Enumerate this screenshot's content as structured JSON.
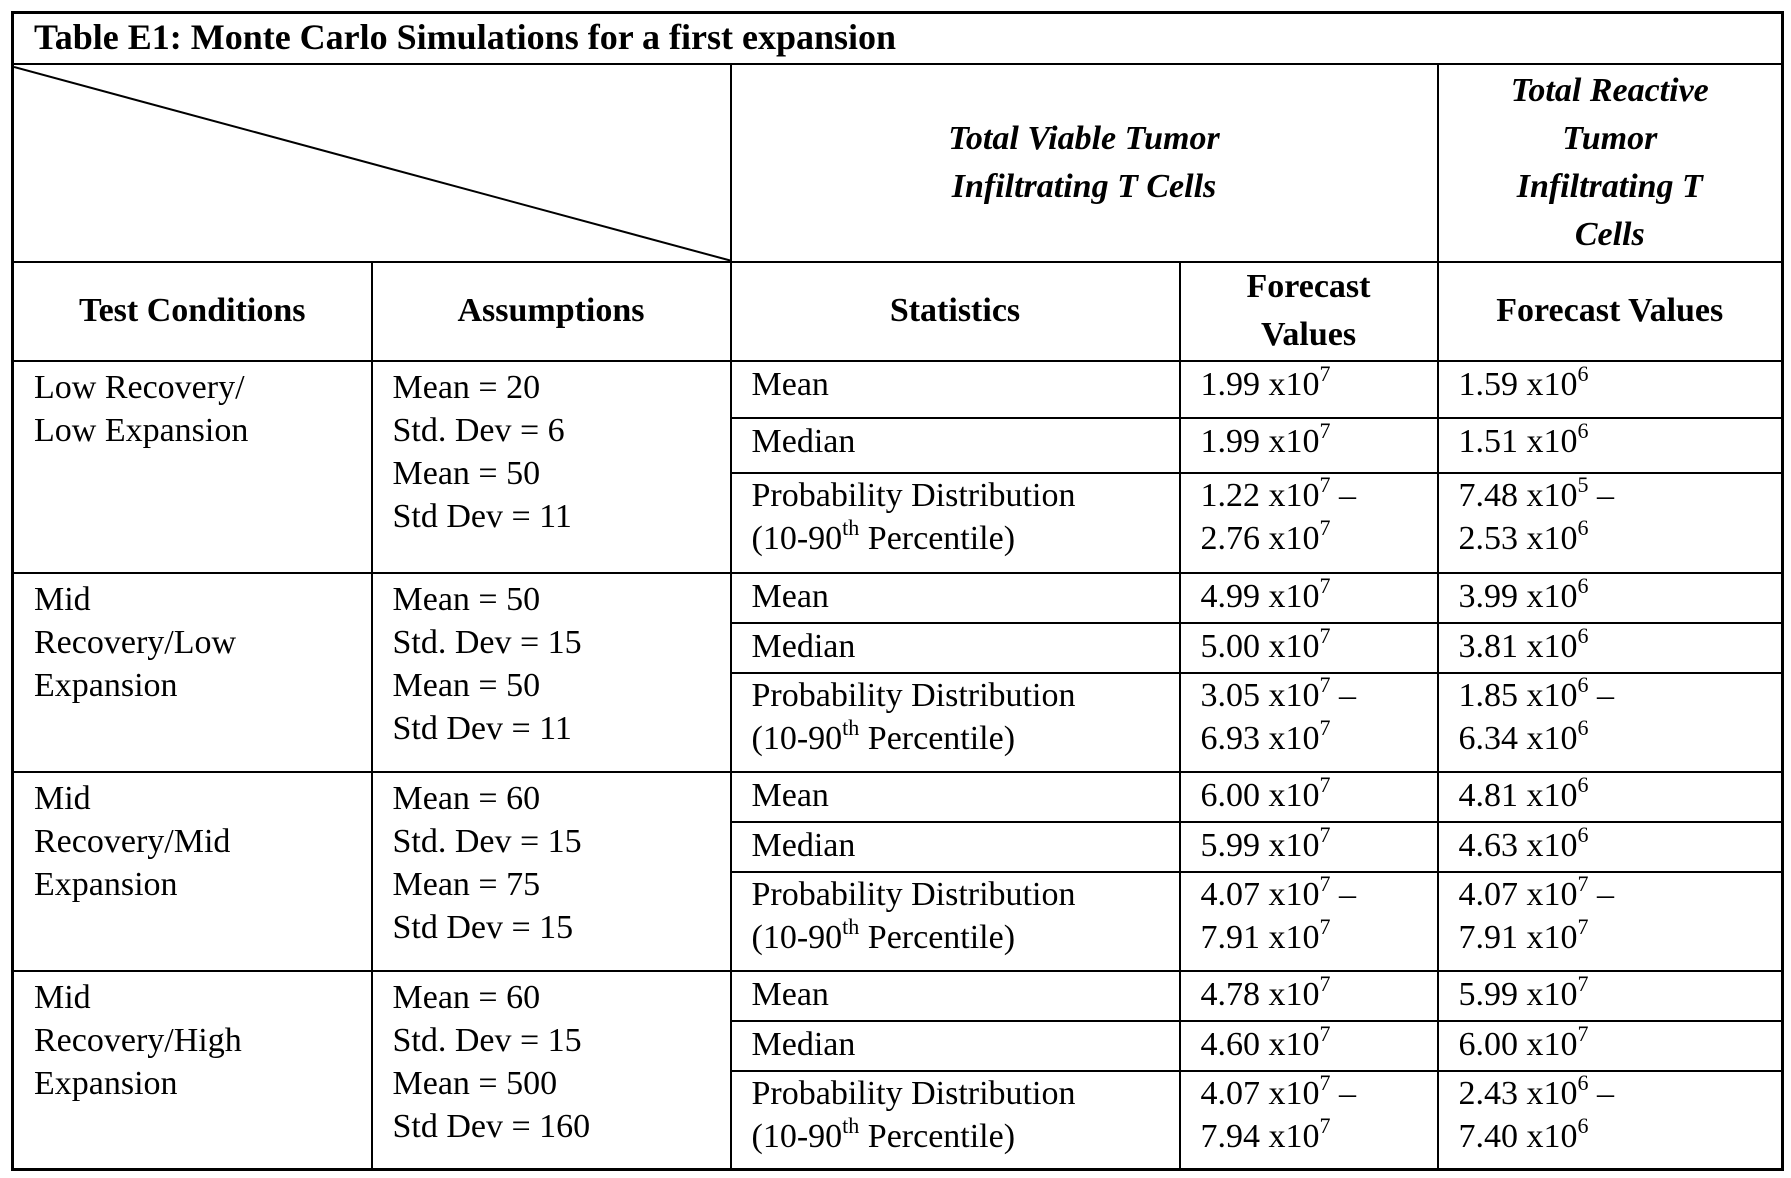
{
  "title": "Table E1: Monte Carlo Simulations for a first expansion",
  "group_headers": [
    [
      "Total Viable Tumor",
      "Infiltrating T Cells"
    ],
    [
      "Total Reactive",
      "Tumor",
      "Infiltrating T",
      "Cells"
    ]
  ],
  "columns": [
    [
      "Test Conditions"
    ],
    [
      "Assumptions"
    ],
    [
      "Statistics"
    ],
    [
      "Forecast",
      "Values"
    ],
    [
      "Forecast Values"
    ]
  ],
  "rows": [
    {
      "condition": [
        "Low Recovery/",
        "Low Expansion"
      ],
      "assumptions": [
        "Mean = 20",
        "Std. Dev = 6",
        "Mean = 50",
        "Std Dev = 11"
      ],
      "stats": [
        {
          "statistic": [
            {
              "t": "Mean"
            }
          ],
          "viable": [
            {
              "t": "1.99 x10",
              "sup": "7"
            }
          ],
          "reactive": [
            {
              "t": "1.59 x10",
              "sup": "6"
            }
          ]
        },
        {
          "statistic": [
            {
              "t": "Median"
            }
          ],
          "viable": [
            {
              "t": "1.99 x10",
              "sup": "7"
            }
          ],
          "reactive": [
            {
              "t": "1.51 x10",
              "sup": "6"
            }
          ]
        },
        {
          "statistic": [
            {
              "t": "Probability Distribution"
            },
            {
              "t": "(10-90",
              "sup": "th",
              "after": " Percentile)"
            }
          ],
          "viable": [
            {
              "t": "1.22 x10",
              "sup": "7",
              "after": " –"
            },
            {
              "t": "2.76 x10",
              "sup": "7"
            }
          ],
          "reactive": [
            {
              "t": "7.48 x10",
              "sup": "5",
              "after": " –"
            },
            {
              "t": "2.53 x10",
              "sup": "6"
            }
          ]
        }
      ]
    },
    {
      "condition": [
        "Mid",
        "Recovery/Low",
        "Expansion"
      ],
      "assumptions": [
        "Mean = 50",
        "Std. Dev = 15",
        "Mean = 50",
        "Std Dev = 11"
      ],
      "stats": [
        {
          "statistic": [
            {
              "t": "Mean"
            }
          ],
          "viable": [
            {
              "t": "4.99 x10",
              "sup": "7"
            }
          ],
          "reactive": [
            {
              "t": "3.99 x10",
              "sup": "6"
            }
          ]
        },
        {
          "statistic": [
            {
              "t": "Median"
            }
          ],
          "viable": [
            {
              "t": "5.00 x10",
              "sup": "7"
            }
          ],
          "reactive": [
            {
              "t": "3.81 x10",
              "sup": "6"
            }
          ]
        },
        {
          "statistic": [
            {
              "t": "Probability Distribution"
            },
            {
              "t": "(10-90",
              "sup": "th",
              "after": " Percentile)"
            }
          ],
          "viable": [
            {
              "t": "3.05 x10",
              "sup": "7",
              "after": " –"
            },
            {
              "t": "6.93 x10",
              "sup": "7"
            }
          ],
          "reactive": [
            {
              "t": "1.85 x10",
              "sup": "6",
              "after": " –"
            },
            {
              "t": "6.34 x10",
              "sup": "6"
            }
          ]
        }
      ]
    },
    {
      "condition": [
        "Mid",
        "Recovery/Mid",
        "Expansion"
      ],
      "assumptions": [
        "Mean = 60",
        "Std. Dev = 15",
        "Mean = 75",
        "Std Dev = 15"
      ],
      "stats": [
        {
          "statistic": [
            {
              "t": "Mean"
            }
          ],
          "viable": [
            {
              "t": "6.00 x10",
              "sup": "7"
            }
          ],
          "reactive": [
            {
              "t": "4.81 x10",
              "sup": "6"
            }
          ]
        },
        {
          "statistic": [
            {
              "t": "Median"
            }
          ],
          "viable": [
            {
              "t": "5.99 x10",
              "sup": "7"
            }
          ],
          "reactive": [
            {
              "t": "4.63 x10",
              "sup": "6"
            }
          ]
        },
        {
          "statistic": [
            {
              "t": "Probability Distribution"
            },
            {
              "t": "(10-90",
              "sup": "th",
              "after": " Percentile)"
            }
          ],
          "viable": [
            {
              "t": "4.07 x10",
              "sup": "7",
              "after": " –"
            },
            {
              "t": "7.91 x10",
              "sup": "7"
            }
          ],
          "reactive": [
            {
              "t": "4.07 x10",
              "sup": "7",
              "after": " –"
            },
            {
              "t": "7.91 x10",
              "sup": "7"
            }
          ]
        }
      ]
    },
    {
      "condition": [
        "Mid",
        "Recovery/High",
        "Expansion"
      ],
      "assumptions": [
        "Mean = 60",
        "Std. Dev = 15",
        "Mean = 500",
        "Std Dev = 160"
      ],
      "stats": [
        {
          "statistic": [
            {
              "t": "Mean"
            }
          ],
          "viable": [
            {
              "t": "4.78 x10",
              "sup": "7"
            }
          ],
          "reactive": [
            {
              "t": "5.99 x10",
              "sup": "7"
            }
          ]
        },
        {
          "statistic": [
            {
              "t": "Median"
            }
          ],
          "viable": [
            {
              "t": "4.60 x10",
              "sup": "7"
            }
          ],
          "reactive": [
            {
              "t": "6.00 x10",
              "sup": "7"
            }
          ]
        },
        {
          "statistic": [
            {
              "t": "Probability Distribution"
            },
            {
              "t": "(10-90",
              "sup": "th",
              "after": " Percentile)"
            }
          ],
          "viable": [
            {
              "t": "4.07 x10",
              "sup": "7",
              "after": " –"
            },
            {
              "t": "7.94 x10",
              "sup": "7"
            }
          ],
          "reactive": [
            {
              "t": "2.43 x10",
              "sup": "6",
              "after": " –"
            },
            {
              "t": "7.40 x10",
              "sup": "6"
            }
          ]
        }
      ]
    }
  ]
}
